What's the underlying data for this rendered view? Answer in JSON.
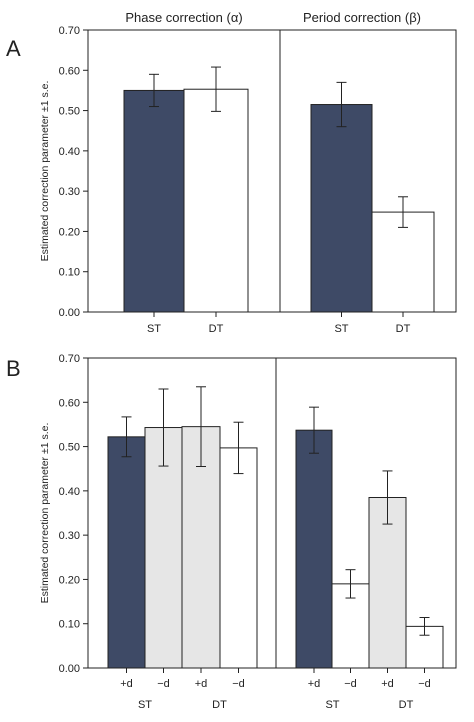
{
  "figure": {
    "panel_a_letter": "A",
    "panel_b_letter": "B",
    "title_left": "Phase correction (α)",
    "title_right": "Period correction (β)"
  },
  "chart_data": [
    {
      "type": "bar",
      "panel": "A",
      "ylabel": "Estimated correction parameter ±1 s.e.",
      "ylim": [
        0,
        0.7
      ],
      "yticks": [
        "0.00",
        "0.10",
        "0.20",
        "0.30",
        "0.40",
        "0.50",
        "0.60",
        "0.70"
      ],
      "subplots": [
        {
          "title": "Phase correction (α)",
          "bars": [
            {
              "label": "ST",
              "value": 0.55,
              "se": 0.04,
              "fill": "dark"
            },
            {
              "label": "DT",
              "value": 0.553,
              "se": 0.055,
              "fill": "white"
            }
          ]
        },
        {
          "title": "Period correction (β)",
          "bars": [
            {
              "label": "ST",
              "value": 0.515,
              "se": 0.055,
              "fill": "dark"
            },
            {
              "label": "DT",
              "value": 0.248,
              "se": 0.038,
              "fill": "white"
            }
          ]
        }
      ]
    },
    {
      "type": "bar",
      "panel": "B",
      "ylabel": "Estimated correction parameter ±1 s.e.",
      "ylim": [
        0,
        0.7
      ],
      "yticks": [
        "0.00",
        "0.10",
        "0.20",
        "0.30",
        "0.40",
        "0.50",
        "0.60",
        "0.70"
      ],
      "subplots": [
        {
          "bars": [
            {
              "label": "+d",
              "group": "ST",
              "value": 0.522,
              "se": 0.045,
              "fill": "dark"
            },
            {
              "label": "−d",
              "group": "ST",
              "value": 0.543,
              "se": 0.087,
              "fill": "light"
            },
            {
              "label": "+d",
              "group": "DT",
              "value": 0.545,
              "se": 0.09,
              "fill": "light"
            },
            {
              "label": "−d",
              "group": "DT",
              "value": 0.497,
              "se": 0.058,
              "fill": "white"
            }
          ],
          "groups": [
            "ST",
            "DT"
          ]
        },
        {
          "bars": [
            {
              "label": "+d",
              "group": "ST",
              "value": 0.537,
              "se": 0.052,
              "fill": "dark"
            },
            {
              "label": "−d",
              "group": "ST",
              "value": 0.19,
              "se": 0.032,
              "fill": "white"
            },
            {
              "label": "+d",
              "group": "DT",
              "value": 0.385,
              "se": 0.06,
              "fill": "light"
            },
            {
              "label": "−d",
              "group": "DT",
              "value": 0.094,
              "se": 0.02,
              "fill": "white"
            }
          ],
          "groups": [
            "ST",
            "DT"
          ]
        }
      ]
    }
  ],
  "colors": {
    "dark": "#3e4a66",
    "light": "#e6e6e6",
    "white": "#ffffff",
    "stroke": "#222222"
  }
}
